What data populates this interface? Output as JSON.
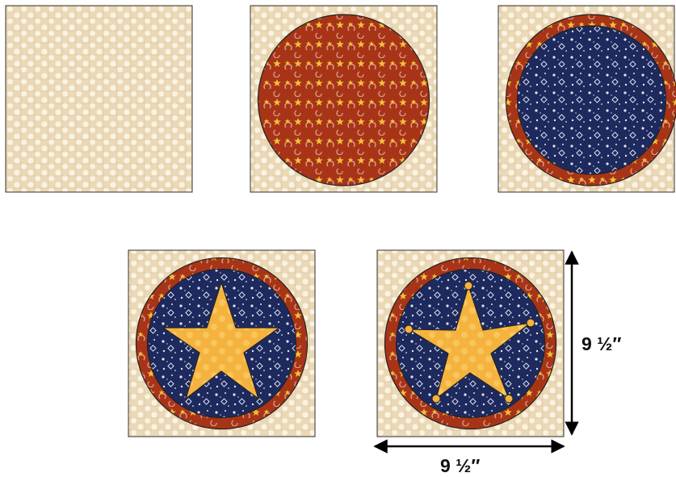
{
  "colors": {
    "background_fabric": "#ead8b6",
    "background_dots": "#fbf3e2",
    "red_fabric": "#a83418",
    "red_print": "#e2a23a",
    "blue_fabric": "#1e2a5e",
    "blue_print": "#dfe6f2",
    "star_fabric": "#f4b23e",
    "star_dots": "#fbcf6a",
    "outline": "#222222",
    "arrow": "#000000"
  },
  "steps": [
    {
      "id": "step-1",
      "layers": [
        "background"
      ]
    },
    {
      "id": "step-2",
      "layers": [
        "background",
        "red-circle"
      ]
    },
    {
      "id": "step-3",
      "layers": [
        "background",
        "red-circle",
        "blue-circle"
      ]
    },
    {
      "id": "step-4",
      "layers": [
        "background",
        "red-circle",
        "blue-circle",
        "star"
      ]
    },
    {
      "id": "step-5",
      "layers": [
        "background",
        "red-circle",
        "blue-circle",
        "star",
        "star-tip-dots"
      ]
    }
  ],
  "dimensions": {
    "width_label": "9 ½″",
    "height_label": "9 ½″"
  }
}
